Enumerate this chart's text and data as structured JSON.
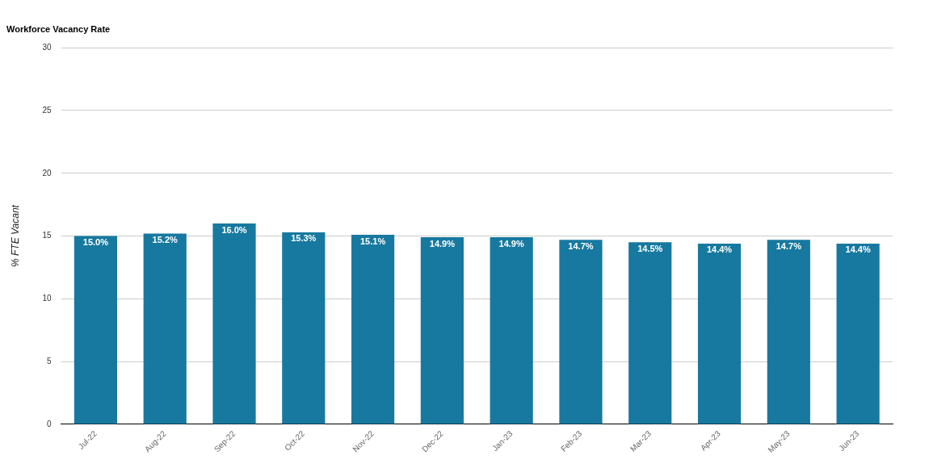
{
  "chart_data": {
    "type": "bar",
    "title": "Workforce Vacancy Rate",
    "ylabel": "% FTE Vacant",
    "categories": [
      "Jul-22",
      "Aug-22",
      "Sep-22",
      "Oct-22",
      "Nov-22",
      "Dec-22",
      "Jan-23",
      "Feb-23",
      "Mar-23",
      "Apr-23",
      "May-23",
      "Jun-23"
    ],
    "values": [
      15.0,
      15.2,
      16.0,
      15.3,
      15.1,
      14.9,
      14.9,
      14.7,
      14.5,
      14.4,
      14.7,
      14.4
    ],
    "value_labels": [
      "15.0%",
      "15.2%",
      "16.0%",
      "15.3%",
      "15.1%",
      "14.9%",
      "14.9%",
      "14.7%",
      "14.5%",
      "14.4%",
      "14.7%",
      "14.4%"
    ],
    "color": "#17799f",
    "ylim": [
      0,
      30
    ],
    "yticks": [
      0,
      5,
      10,
      15,
      20,
      25,
      30
    ],
    "grid": "y",
    "legend": false
  }
}
